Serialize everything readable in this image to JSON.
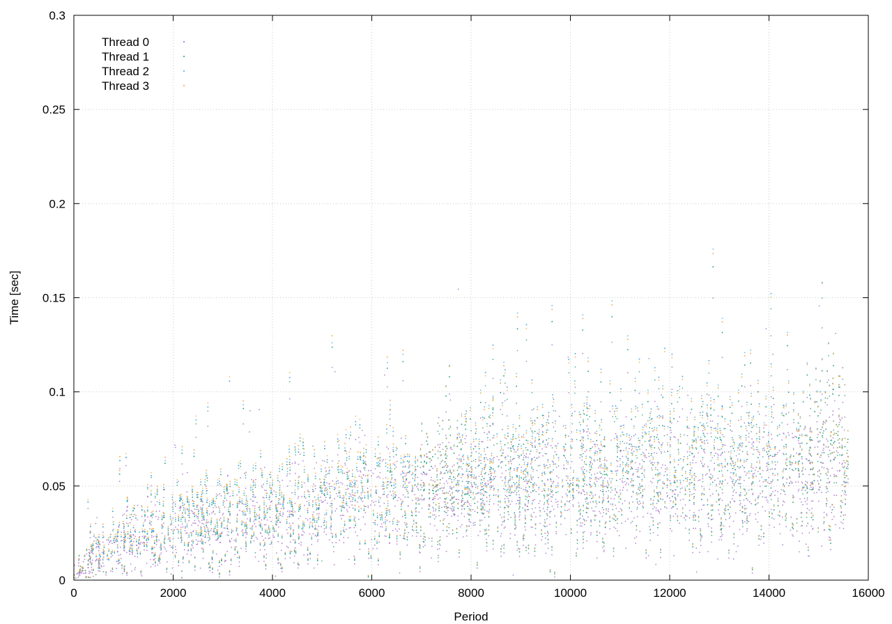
{
  "chart_data": {
    "type": "scatter",
    "xlabel": "Period",
    "ylabel": "Time [sec]",
    "xlim": [
      0,
      16000
    ],
    "ylim": [
      0,
      0.3
    ],
    "x_ticks": [
      0,
      2000,
      4000,
      6000,
      8000,
      10000,
      12000,
      14000,
      16000
    ],
    "x_tick_labels": [
      "0",
      "2000",
      "4000",
      "6000",
      "8000",
      "10000",
      "12000",
      "14000",
      "16000"
    ],
    "y_ticks": [
      0,
      0.05,
      0.1,
      0.15,
      0.2,
      0.25,
      0.3
    ],
    "y_tick_labels": [
      "0",
      "0.05",
      "0.1",
      "0.15",
      "0.2",
      "0.25",
      "0.3"
    ],
    "grid": true,
    "legend_position": "top-left",
    "x_max_data": 15600,
    "series": [
      {
        "name": "Thread 0",
        "color": "#9b59c6",
        "trend": [
          [
            0,
            0.003
          ],
          [
            500,
            0.012
          ],
          [
            1000,
            0.02
          ],
          [
            2000,
            0.026
          ],
          [
            3000,
            0.03
          ],
          [
            4000,
            0.033
          ],
          [
            6000,
            0.042
          ],
          [
            8000,
            0.047
          ],
          [
            10000,
            0.05
          ],
          [
            12000,
            0.052
          ],
          [
            14000,
            0.055
          ],
          [
            15600,
            0.056
          ]
        ]
      },
      {
        "name": "Thread 1",
        "color": "#1a9e77",
        "trend": [
          [
            0,
            0.004
          ],
          [
            500,
            0.014
          ],
          [
            1000,
            0.022
          ],
          [
            2000,
            0.029
          ],
          [
            3000,
            0.034
          ],
          [
            4000,
            0.037
          ],
          [
            6000,
            0.047
          ],
          [
            8000,
            0.052
          ],
          [
            10000,
            0.056
          ],
          [
            12000,
            0.059
          ],
          [
            14000,
            0.062
          ],
          [
            15600,
            0.064
          ]
        ]
      },
      {
        "name": "Thread 2",
        "color": "#3aa6e0",
        "trend": [
          [
            0,
            0.004
          ],
          [
            500,
            0.014
          ],
          [
            1000,
            0.022
          ],
          [
            2000,
            0.03
          ],
          [
            3000,
            0.035
          ],
          [
            4000,
            0.038
          ],
          [
            6000,
            0.048
          ],
          [
            8000,
            0.056
          ],
          [
            10000,
            0.06
          ],
          [
            12000,
            0.063
          ],
          [
            14000,
            0.066
          ],
          [
            15600,
            0.068
          ]
        ]
      },
      {
        "name": "Thread 3",
        "color": "#e6a83a",
        "trend": [
          [
            0,
            0.004
          ],
          [
            500,
            0.015
          ],
          [
            1000,
            0.023
          ],
          [
            2000,
            0.031
          ],
          [
            3000,
            0.036
          ],
          [
            4000,
            0.039
          ],
          [
            6000,
            0.05
          ],
          [
            8000,
            0.055
          ],
          [
            10000,
            0.059
          ],
          [
            12000,
            0.062
          ],
          [
            14000,
            0.065
          ],
          [
            15600,
            0.068
          ]
        ]
      }
    ]
  }
}
